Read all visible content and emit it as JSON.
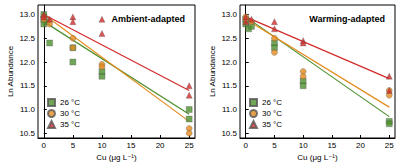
{
  "chart_data": [
    {
      "type": "scatter",
      "title": "Ambient-adapted",
      "x_label": "Cu (μg L⁻¹)",
      "y_label": "Ln Abundance",
      "xlim": [
        -1,
        26
      ],
      "xticks": [
        0,
        5,
        10,
        15,
        20,
        25
      ],
      "ylim": [
        10.4,
        13.2
      ],
      "yticks": [
        {
          "value": 10.5,
          "label": "10.5"
        },
        {
          "value": 11,
          "label": "11.0"
        },
        {
          "value": 11.5,
          "label": "11.5"
        },
        {
          "value": 12,
          "label": "12.0"
        },
        {
          "value": 12.5,
          "label": "12.5"
        },
        {
          "value": 13,
          "label": "13.0"
        }
      ],
      "legend": "lower left",
      "series": [
        {
          "name": "26 °C",
          "color": "#4e8f2e",
          "marker": "square",
          "x": [
            0,
            0,
            0,
            0.5,
            1,
            5,
            5,
            10,
            10,
            25,
            25
          ],
          "values": [
            12.9,
            13.0,
            12.8,
            12.85,
            12.4,
            12.0,
            12.3,
            11.7,
            11.8,
            11.0,
            10.8
          ],
          "fit": {
            "x": [
              0,
              25
            ],
            "values": [
              12.85,
              10.9
            ]
          }
        },
        {
          "name": "30 °C",
          "color": "#e38b1e",
          "marker": "circle",
          "x": [
            0,
            0,
            1,
            5,
            5,
            10,
            10,
            25,
            25
          ],
          "values": [
            12.95,
            12.9,
            12.8,
            12.5,
            12.3,
            11.95,
            11.9,
            10.6,
            10.5
          ],
          "fit": {
            "x": [
              0,
              25
            ],
            "values": [
              13.0,
              10.75
            ]
          }
        },
        {
          "name": "35 °C",
          "color": "#d32a2a",
          "marker": "triangle",
          "x": [
            0,
            0,
            1,
            5,
            5,
            10,
            10,
            25,
            25
          ],
          "values": [
            13.0,
            12.95,
            12.9,
            12.95,
            12.85,
            12.9,
            12.6,
            11.3,
            11.5
          ],
          "fit": {
            "x": [
              0,
              25
            ],
            "values": [
              13.0,
              11.4
            ]
          }
        }
      ]
    },
    {
      "type": "scatter",
      "title": "Warming-adapted",
      "x_label": "Cu (μg L⁻¹)",
      "y_label": "Ln Abundance",
      "xlim": [
        -1,
        26
      ],
      "xticks": [
        0,
        5,
        10,
        15,
        20,
        25
      ],
      "ylim": [
        10.4,
        13.2
      ],
      "yticks": [
        {
          "value": 10.5,
          "label": "10.5"
        },
        {
          "value": 11,
          "label": "11.0"
        },
        {
          "value": 11.5,
          "label": "11.5"
        },
        {
          "value": 12,
          "label": "12.0"
        },
        {
          "value": 12.5,
          "label": "12.5"
        },
        {
          "value": 13,
          "label": "13.0"
        }
      ],
      "legend": "lower left",
      "series": [
        {
          "name": "26 °C",
          "color": "#4e8f2e",
          "marker": "square",
          "x": [
            0,
            0,
            0.5,
            1,
            5,
            5,
            10,
            10,
            25,
            25
          ],
          "values": [
            12.9,
            12.8,
            12.7,
            12.75,
            12.4,
            12.3,
            11.6,
            11.5,
            10.75,
            10.7
          ],
          "fit": {
            "x": [
              0,
              25
            ],
            "values": [
              12.95,
              10.85
            ]
          }
        },
        {
          "name": "30 °C",
          "color": "#e38b1e",
          "marker": "circle",
          "x": [
            0,
            0,
            1,
            5,
            5,
            10,
            10,
            25,
            25
          ],
          "values": [
            12.95,
            12.9,
            12.85,
            12.5,
            12.2,
            11.8,
            11.7,
            11.4,
            11.3
          ],
          "fit": {
            "x": [
              0,
              25
            ],
            "values": [
              12.9,
              11.05
            ]
          }
        },
        {
          "name": "35 °C",
          "color": "#d32a2a",
          "marker": "triangle",
          "x": [
            0,
            0,
            1,
            5,
            5,
            10,
            10,
            25,
            25
          ],
          "values": [
            12.95,
            12.85,
            12.9,
            12.85,
            12.7,
            12.45,
            12.4,
            11.7,
            11.4
          ],
          "fit": {
            "x": [
              0,
              25
            ],
            "values": [
              12.95,
              11.65
            ]
          }
        }
      ]
    }
  ]
}
